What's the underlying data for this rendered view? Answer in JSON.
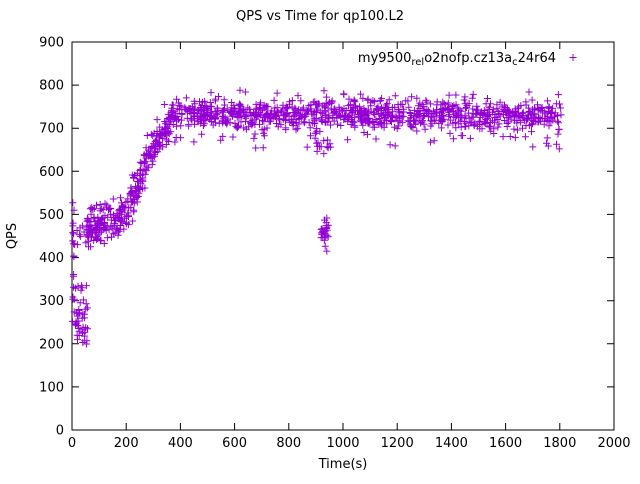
{
  "chart_data": {
    "type": "scatter",
    "title": "QPS vs Time for qp100.L2",
    "xlabel": "Time(s)",
    "ylabel": "QPS",
    "xlim": [
      0,
      2000
    ],
    "ylim": [
      0,
      900
    ],
    "xticks": [
      0,
      200,
      400,
      600,
      800,
      1000,
      1200,
      1400,
      1600,
      1800,
      2000
    ],
    "yticks": [
      0,
      100,
      200,
      300,
      400,
      500,
      600,
      700,
      800,
      900
    ],
    "grid": false,
    "marker": {
      "shape": "plus",
      "color": "#9400D3",
      "size": 7
    },
    "legend": {
      "position": "top-right-inside",
      "entries": [
        {
          "label": "my9500relo2nofp.cz13ac24r64",
          "label_parts": [
            {
              "text": "my9500",
              "sub": false
            },
            {
              "text": "rel",
              "sub": true
            },
            {
              "text": "o2nofp.cz13a",
              "sub": false
            },
            {
              "text": "c",
              "sub": true
            },
            {
              "text": "24r64",
              "sub": false
            }
          ],
          "marker": "plus",
          "color": "#9400D3"
        }
      ]
    },
    "seed": 1337,
    "scatter_segments": [
      {
        "x": [
          1,
          12
        ],
        "n": 16,
        "y": [
          390,
          390
        ],
        "spread": 140,
        "dist": "uniform",
        "clip": [
          250,
          532
        ]
      },
      {
        "x": [
          12,
          62
        ],
        "n": 42,
        "y": [
          268,
          260
        ],
        "spread": 38,
        "dist": "normal",
        "clip": [
          197,
          335
        ]
      },
      {
        "x": [
          18,
          60
        ],
        "n": 10,
        "y": [
          452,
          452
        ],
        "spread": 16,
        "dist": "normal",
        "clip": [
          420,
          485
        ]
      },
      {
        "x": [
          55,
          205
        ],
        "n": 150,
        "y": [
          468,
          502
        ],
        "spread": 21,
        "dist": "normal",
        "clip": [
          425,
          545
        ]
      },
      {
        "x": [
          205,
          280
        ],
        "n": 80,
        "y": [
          515,
          632
        ],
        "spread": 24,
        "dist": "normal",
        "clip": [
          455,
          690
        ]
      },
      {
        "x": [
          280,
          365
        ],
        "n": 85,
        "y": [
          640,
          708
        ],
        "spread": 21,
        "dist": "normal",
        "clip": [
          590,
          760
        ]
      },
      {
        "x": [
          365,
          1805
        ],
        "n": 950,
        "y": [
          731,
          731
        ],
        "spread": 18,
        "dist": "normal",
        "clip": [
          652,
          788
        ]
      },
      {
        "x": [
          365,
          1805
        ],
        "n": 70,
        "y": [
          718,
          718
        ],
        "spread": 66,
        "dist": "uniform",
        "clip": [
          652,
          788
        ]
      },
      {
        "x": [
          918,
          946
        ],
        "n": 26,
        "y": [
          455,
          455
        ],
        "spread": 20,
        "dist": "normal",
        "clip": [
          415,
          492
        ]
      },
      {
        "x": [
          896,
          960
        ],
        "n": 12,
        "y": [
          664,
          664
        ],
        "spread": 16,
        "dist": "normal",
        "clip": [
          630,
          705
        ]
      }
    ],
    "extra_points": [
      [
        3,
        527
      ],
      [
        4,
        480
      ],
      [
        6,
        432
      ],
      [
        2,
        252
      ],
      [
        38,
        330
      ],
      [
        40,
        203
      ],
      [
        55,
        207
      ],
      [
        620,
        788
      ],
      [
        640,
        784
      ],
      [
        930,
        787
      ],
      [
        1795,
        778
      ],
      [
        1788,
        663
      ],
      [
        1798,
        652
      ]
    ]
  }
}
